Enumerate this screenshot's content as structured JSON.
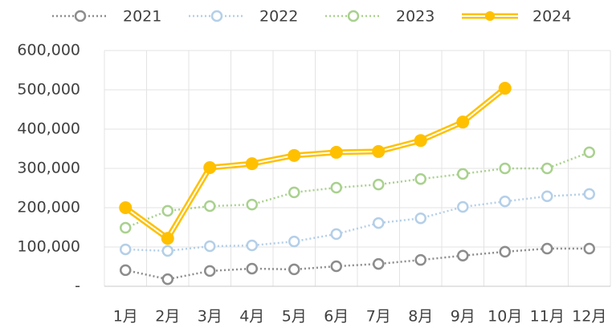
{
  "chart_data": {
    "type": "line",
    "categories": [
      "1月",
      "2月",
      "3月",
      "4月",
      "5月",
      "6月",
      "7月",
      "8月",
      "9月",
      "10月",
      "11月",
      "12月"
    ],
    "series": [
      {
        "name": "2021",
        "color": "#8c8c8c",
        "line_style": "dotted",
        "marker": "hollow",
        "values": [
          41000,
          18000,
          39000,
          45000,
          43000,
          51000,
          57000,
          67000,
          78000,
          88000,
          96000,
          96000
        ]
      },
      {
        "name": "2022",
        "color": "#b4cfe8",
        "line_style": "dotted",
        "marker": "hollow",
        "values": [
          94000,
          90000,
          102000,
          104000,
          114000,
          133000,
          161000,
          173000,
          202000,
          216000,
          229000,
          235000
        ]
      },
      {
        "name": "2023",
        "color": "#a9d18e",
        "line_style": "dotted",
        "marker": "hollow",
        "values": [
          149000,
          192000,
          204000,
          208000,
          239000,
          251000,
          259000,
          273000,
          286000,
          300000,
          300000,
          341000
        ]
      },
      {
        "name": "2024",
        "color": "#ffc000",
        "line_style": "double",
        "marker": "filled",
        "values": [
          200000,
          122000,
          302000,
          312000,
          333000,
          341000,
          343000,
          371000,
          418000,
          504000,
          null,
          null
        ]
      }
    ],
    "ylim": [
      0,
      600000
    ],
    "yticks": [
      {
        "value": 0,
        "label": "-"
      },
      {
        "value": 100000,
        "label": "100,000"
      },
      {
        "value": 200000,
        "label": "200,000"
      },
      {
        "value": 300000,
        "label": "300,000"
      },
      {
        "value": 400000,
        "label": "400,000"
      },
      {
        "value": 500000,
        "label": "500,000"
      },
      {
        "value": 600000,
        "label": "600,000"
      }
    ],
    "grid": true,
    "legend": "top"
  }
}
